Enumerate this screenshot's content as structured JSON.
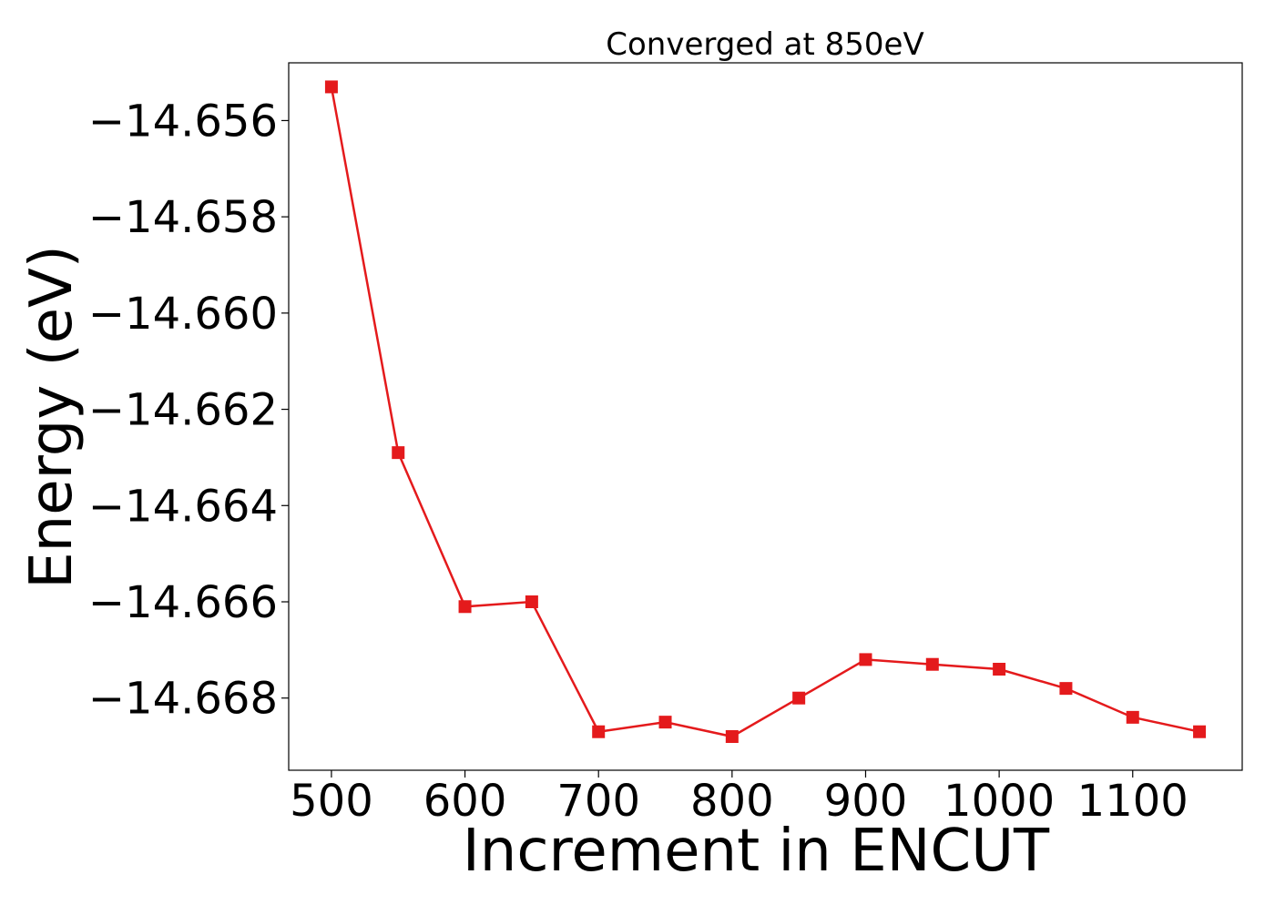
{
  "chart_data": {
    "type": "line",
    "title": "Converged at 850eV",
    "xlabel": "Increment in ENCUT",
    "ylabel": "Energy (eV)",
    "xlim": [
      468,
      1182
    ],
    "ylim": [
      -14.6695,
      -14.6548
    ],
    "x_ticks": [
      500,
      600,
      700,
      800,
      900,
      1000,
      1100
    ],
    "y_ticks": [
      -14.656,
      -14.658,
      -14.66,
      -14.662,
      -14.664,
      -14.666,
      -14.668
    ],
    "y_tick_labels": [
      "−14.656",
      "−14.658",
      "−14.660",
      "−14.662",
      "−14.664",
      "−14.666",
      "−14.668"
    ],
    "grid": false,
    "series": [
      {
        "color": "#e41a1c",
        "marker": "square",
        "x": [
          500,
          550,
          600,
          650,
          700,
          750,
          800,
          850,
          900,
          950,
          1000,
          1050,
          1100,
          1150
        ],
        "y": [
          -14.6553,
          -14.6629,
          -14.6661,
          -14.666,
          -14.6687,
          -14.6685,
          -14.6688,
          -14.668,
          -14.6672,
          -14.6673,
          -14.6674,
          -14.6678,
          -14.6684,
          -14.6687
        ]
      }
    ]
  }
}
